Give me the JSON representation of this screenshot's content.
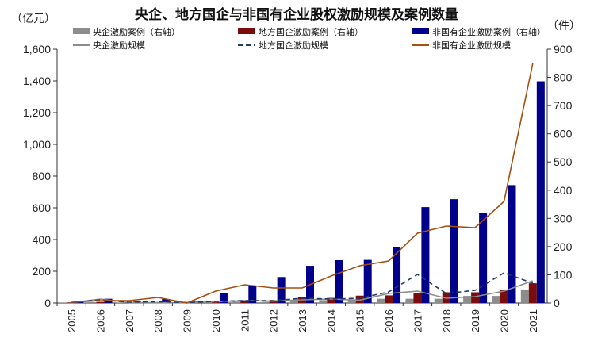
{
  "chart_data": {
    "type": "bar",
    "title": "央企、地方国企与非国有企业股权激励规模及案例数量",
    "left_unit": "（亿元）",
    "right_unit": "（件）",
    "categories": [
      "2005",
      "2006",
      "2007",
      "2008",
      "2009",
      "2010",
      "2011",
      "2012",
      "2013",
      "2014",
      "2015",
      "2016",
      "2017",
      "2018",
      "2019",
      "2020",
      "2021"
    ],
    "left_axis": {
      "min": 0,
      "max": 1600,
      "ticks": [
        "0",
        "200",
        "400",
        "600",
        "800",
        "1,000",
        "1,200",
        "1,400",
        "1,600"
      ]
    },
    "right_axis": {
      "min": 0,
      "max": 900,
      "ticks": [
        "0",
        "100",
        "200",
        "300",
        "400",
        "500",
        "600",
        "700",
        "800",
        "900"
      ]
    },
    "colors": {
      "soe_bar": "#8c8c8c",
      "local_bar": "#7b0c0c",
      "private_bar": "#00008b",
      "soe_line": "#8c8c8c",
      "local_line": "#1f3a68",
      "private_line": "#a64d0f"
    },
    "legend": {
      "soe_cases": "央企激励案例（右轴）",
      "local_cases": "地方国企激励案例（右轴）",
      "private_cases": "非国有企业激励案例（右轴）",
      "soe_scale": "央企激励规模",
      "local_scale": "地方国企激励规模",
      "private_scale": "非国有企业激励规模"
    },
    "series": [
      {
        "key": "soe_cases",
        "type": "bar",
        "axis": "right",
        "values": [
          2,
          3,
          2,
          2,
          1,
          3,
          5,
          4,
          6,
          10,
          12,
          15,
          15,
          15,
          25,
          25,
          48
        ]
      },
      {
        "key": "local_cases",
        "type": "bar",
        "axis": "right",
        "values": [
          2,
          4,
          3,
          3,
          2,
          6,
          10,
          10,
          20,
          18,
          26,
          27,
          35,
          38,
          38,
          48,
          70
        ]
      },
      {
        "key": "private_cases",
        "type": "bar",
        "axis": "right",
        "values": [
          3,
          15,
          5,
          14,
          5,
          35,
          60,
          92,
          132,
          152,
          153,
          198,
          340,
          368,
          320,
          418,
          786
        ]
      },
      {
        "key": "soe_scale",
        "type": "line",
        "axis": "left",
        "values": [
          2,
          25,
          3,
          2,
          2,
          8,
          15,
          12,
          20,
          25,
          18,
          60,
          75,
          30,
          40,
          75,
          140
        ]
      },
      {
        "key": "local_scale",
        "type": "line",
        "axis": "left",
        "values": [
          3,
          20,
          5,
          8,
          3,
          10,
          15,
          15,
          30,
          25,
          30,
          70,
          180,
          60,
          80,
          190,
          125
        ]
      },
      {
        "key": "private_scale",
        "type": "line",
        "axis": "left",
        "values": [
          5,
          15,
          15,
          35,
          0,
          75,
          115,
          95,
          95,
          170,
          235,
          265,
          440,
          485,
          475,
          640,
          1510
        ]
      }
    ]
  }
}
